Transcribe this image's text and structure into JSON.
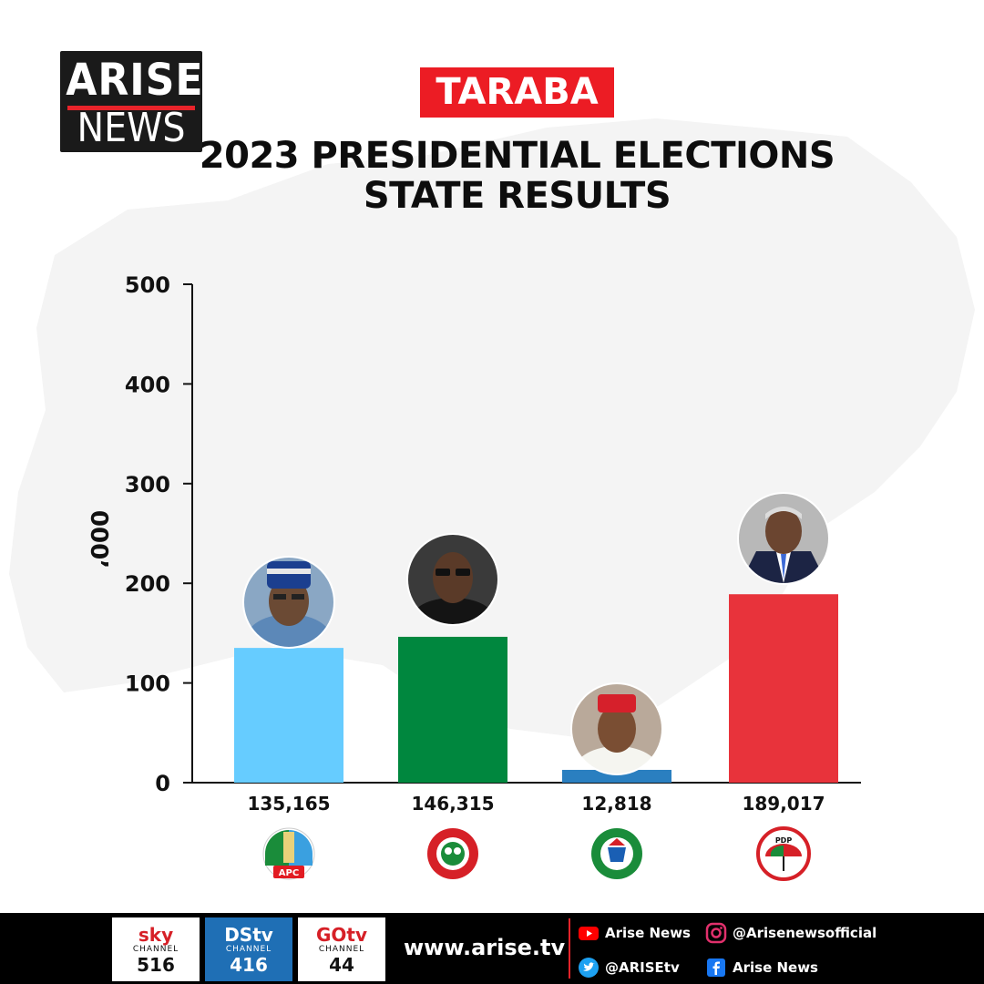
{
  "logo": {
    "line1": "ARISE",
    "line2": "NEWS"
  },
  "state": "TARABA",
  "title_line1": "2023 PRESIDENTIAL ELECTIONS",
  "title_line2": "STATE RESULTS",
  "chart_data": {
    "type": "bar",
    "ylabel": "000’",
    "ylim": [
      0,
      500
    ],
    "yticks": [
      0,
      100,
      200,
      300,
      400,
      500
    ],
    "grid": false,
    "categories": [
      "APC",
      "LP",
      "NNPP",
      "PDP"
    ],
    "values": [
      135165,
      146315,
      12818,
      189017
    ],
    "value_labels": [
      "135,165",
      "146,315",
      "12,818",
      "189,017"
    ],
    "colors": [
      "#66ccff",
      "#00873e",
      "#2a7fc0",
      "#e8333b"
    ]
  },
  "party_logos": [
    {
      "icon": "apc-logo-icon",
      "text": "APC"
    },
    {
      "icon": "labour-party-logo-icon",
      "text": ""
    },
    {
      "icon": "nnpp-logo-icon",
      "text": ""
    },
    {
      "icon": "pdp-logo-icon",
      "text": "PDP"
    }
  ],
  "footer": {
    "channels": [
      {
        "brand": "sky",
        "label": "CHANNEL",
        "number": "516"
      },
      {
        "brand": "DStv",
        "label": "CHANNEL",
        "number": "416"
      },
      {
        "brand": "GOtv",
        "label": "CHANNEL",
        "number": "44"
      }
    ],
    "website": "www.arise.tv",
    "socials": [
      {
        "icon": "youtube-icon",
        "handle": "Arise News"
      },
      {
        "icon": "instagram-icon",
        "handle": "@Arisenewsofficial"
      },
      {
        "icon": "twitter-icon",
        "handle": "@ARISEtv"
      },
      {
        "icon": "facebook-icon",
        "handle": "Arise News"
      }
    ]
  }
}
